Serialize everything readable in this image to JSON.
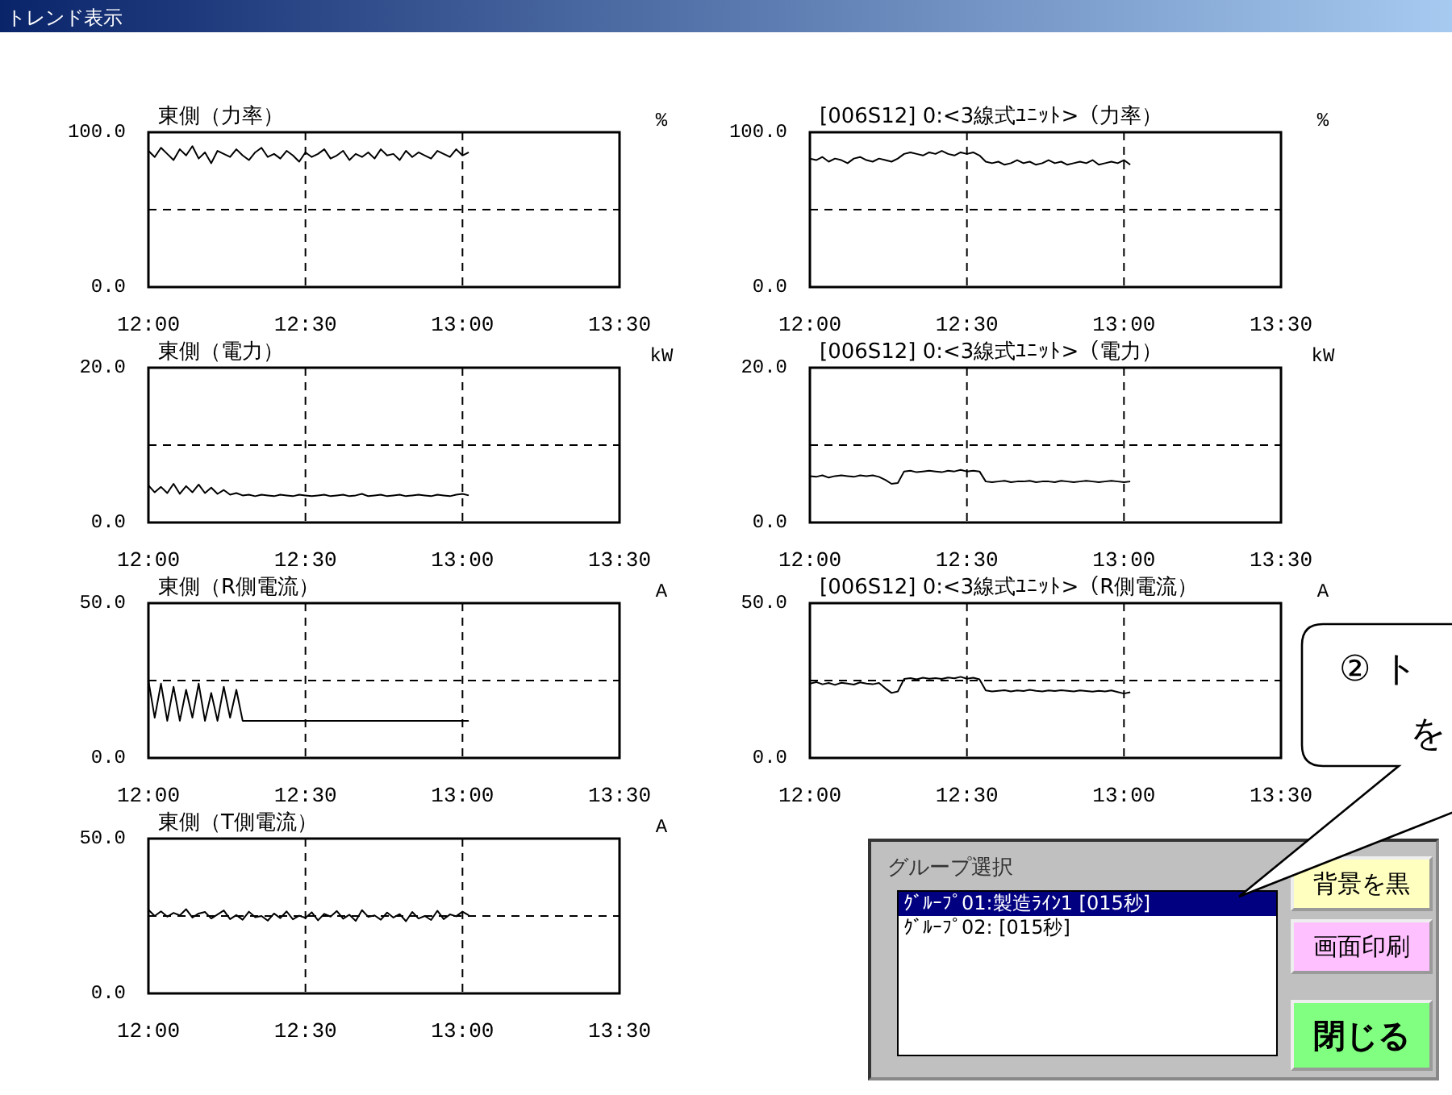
{
  "chart_data": [
    {
      "type": "line",
      "title": "東側（力率）",
      "ylabel": "%",
      "xlim": [
        12,
        13.5
      ],
      "ylim": [
        0,
        100
      ],
      "grid": true,
      "xticks": [
        {
          "value": 12,
          "label": "12:00"
        },
        {
          "value": 12.5,
          "label": "12:30"
        },
        {
          "value": 13,
          "label": "13:00"
        },
        {
          "value": 13.5,
          "label": "13:30"
        }
      ],
      "yticks": [
        {
          "value": 0,
          "label": "0.0"
        },
        {
          "value": 50,
          "label": null
        },
        {
          "value": 100,
          "label": "100.0"
        }
      ],
      "x": [
        12,
        12.02,
        12.04,
        12.06,
        12.08,
        12.1,
        12.12,
        12.14,
        12.16,
        12.18,
        12.2,
        12.22,
        12.24,
        12.26,
        12.28,
        12.3,
        12.32,
        12.34,
        12.36,
        12.38,
        12.4,
        12.42,
        12.44,
        12.46,
        12.48,
        12.5,
        12.52,
        12.54,
        12.56,
        12.58,
        12.6,
        12.62,
        12.64,
        12.66,
        12.68,
        12.7,
        12.72,
        12.74,
        12.76,
        12.78,
        12.8,
        12.82,
        12.84,
        12.86,
        12.88,
        12.9,
        12.92,
        12.94,
        12.96,
        12.98,
        13,
        13.02
      ],
      "series": [
        {
          "color": "#000000",
          "values": [
            88,
            84,
            90,
            86,
            82,
            89,
            85,
            91,
            83,
            87,
            80,
            88,
            86,
            84,
            89,
            85,
            82,
            87,
            90,
            84,
            86,
            83,
            88,
            85,
            81,
            87,
            84,
            86,
            89,
            83,
            85,
            88,
            82,
            86,
            84,
            87,
            83,
            89,
            85,
            86,
            82,
            88,
            84,
            87,
            85,
            83,
            88,
            86,
            84,
            89,
            85,
            87
          ]
        }
      ]
    },
    {
      "type": "line",
      "title": "[006S12] 0:<3線式ﾕﾆｯﾄ>（力率）",
      "ylabel": "%",
      "xlim": [
        12,
        13.5
      ],
      "ylim": [
        0,
        100
      ],
      "grid": true,
      "xticks": [
        {
          "value": 12,
          "label": "12:00"
        },
        {
          "value": 12.5,
          "label": "12:30"
        },
        {
          "value": 13,
          "label": "13:00"
        },
        {
          "value": 13.5,
          "label": "13:30"
        }
      ],
      "yticks": [
        {
          "value": 0,
          "label": "0.0"
        },
        {
          "value": 50,
          "label": null
        },
        {
          "value": 100,
          "label": "100.0"
        }
      ],
      "x": [
        12,
        12.02,
        12.04,
        12.06,
        12.08,
        12.1,
        12.12,
        12.14,
        12.16,
        12.18,
        12.2,
        12.22,
        12.24,
        12.26,
        12.28,
        12.3,
        12.32,
        12.34,
        12.36,
        12.38,
        12.4,
        12.42,
        12.44,
        12.46,
        12.48,
        12.5,
        12.52,
        12.54,
        12.56,
        12.58,
        12.6,
        12.62,
        12.64,
        12.66,
        12.68,
        12.7,
        12.72,
        12.74,
        12.76,
        12.78,
        12.8,
        12.82,
        12.84,
        12.86,
        12.88,
        12.9,
        12.92,
        12.94,
        12.96,
        12.98,
        13,
        13.02
      ],
      "series": [
        {
          "color": "#000000",
          "values": [
            83,
            82,
            84,
            81,
            83,
            82,
            80,
            83,
            84,
            82,
            81,
            83,
            82,
            81,
            83,
            86,
            87,
            86,
            85,
            87,
            86,
            88,
            86,
            85,
            87,
            86,
            87,
            85,
            81,
            80,
            81,
            79,
            80,
            82,
            80,
            81,
            79,
            80,
            82,
            80,
            81,
            79,
            80,
            81,
            80,
            82,
            79,
            80,
            81,
            80,
            82,
            79
          ]
        }
      ]
    },
    {
      "type": "line",
      "title": "東側（電力）",
      "ylabel": "kW",
      "xlim": [
        12,
        13.5
      ],
      "ylim": [
        0,
        20
      ],
      "grid": true,
      "xticks": [
        {
          "value": 12,
          "label": "12:00"
        },
        {
          "value": 12.5,
          "label": "12:30"
        },
        {
          "value": 13,
          "label": "13:00"
        },
        {
          "value": 13.5,
          "label": "13:30"
        }
      ],
      "yticks": [
        {
          "value": 0,
          "label": "0.0"
        },
        {
          "value": 10,
          "label": null
        },
        {
          "value": 20,
          "label": "20.0"
        }
      ],
      "x": [
        12,
        12.02,
        12.04,
        12.06,
        12.08,
        12.1,
        12.12,
        12.14,
        12.16,
        12.18,
        12.2,
        12.22,
        12.24,
        12.26,
        12.28,
        12.3,
        12.32,
        12.34,
        12.36,
        12.38,
        12.4,
        12.42,
        12.44,
        12.46,
        12.48,
        12.5,
        12.52,
        12.54,
        12.56,
        12.58,
        12.6,
        12.62,
        12.64,
        12.66,
        12.68,
        12.7,
        12.72,
        12.74,
        12.76,
        12.78,
        12.8,
        12.82,
        12.84,
        12.86,
        12.88,
        12.9,
        12.92,
        12.94,
        12.96,
        12.98,
        13,
        13.02
      ],
      "series": [
        {
          "color": "#000000",
          "values": [
            4.8,
            3.9,
            4.6,
            3.8,
            5.0,
            3.7,
            4.7,
            3.9,
            4.9,
            3.8,
            4.5,
            3.7,
            4.2,
            3.6,
            3.8,
            3.5,
            3.6,
            3.4,
            3.6,
            3.5,
            3.4,
            3.6,
            3.5,
            3.4,
            3.6,
            3.5,
            3.4,
            3.5,
            3.6,
            3.4,
            3.5,
            3.6,
            3.4,
            3.5,
            3.7,
            3.4,
            3.5,
            3.6,
            3.4,
            3.5,
            3.6,
            3.4,
            3.5,
            3.6,
            3.5,
            3.4,
            3.6,
            3.5,
            3.4,
            3.6,
            3.7,
            3.5
          ]
        }
      ]
    },
    {
      "type": "line",
      "title": "[006S12] 0:<3線式ﾕﾆｯﾄ>（電力）",
      "ylabel": "kW",
      "xlim": [
        12,
        13.5
      ],
      "ylim": [
        0,
        20
      ],
      "grid": true,
      "xticks": [
        {
          "value": 12,
          "label": "12:00"
        },
        {
          "value": 12.5,
          "label": "12:30"
        },
        {
          "value": 13,
          "label": "13:00"
        },
        {
          "value": 13.5,
          "label": "13:30"
        }
      ],
      "yticks": [
        {
          "value": 0,
          "label": "0.0"
        },
        {
          "value": 10,
          "label": null
        },
        {
          "value": 20,
          "label": "20.0"
        }
      ],
      "x": [
        12,
        12.02,
        12.04,
        12.06,
        12.08,
        12.1,
        12.12,
        12.14,
        12.16,
        12.18,
        12.2,
        12.22,
        12.24,
        12.26,
        12.28,
        12.3,
        12.32,
        12.34,
        12.36,
        12.38,
        12.4,
        12.42,
        12.44,
        12.46,
        12.48,
        12.5,
        12.52,
        12.54,
        12.56,
        12.58,
        12.6,
        12.62,
        12.64,
        12.66,
        12.68,
        12.7,
        12.72,
        12.74,
        12.76,
        12.78,
        12.8,
        12.82,
        12.84,
        12.86,
        12.88,
        12.9,
        12.92,
        12.94,
        12.96,
        12.98,
        13,
        13.02
      ],
      "series": [
        {
          "color": "#000000",
          "values": [
            6.0,
            5.9,
            6.1,
            5.8,
            6.0,
            6.1,
            6.0,
            5.9,
            6.1,
            6.0,
            6.1,
            5.9,
            5.5,
            5.0,
            5.1,
            6.6,
            6.7,
            6.5,
            6.6,
            6.7,
            6.6,
            6.5,
            6.7,
            6.6,
            6.8,
            6.6,
            6.7,
            6.6,
            5.3,
            5.2,
            5.3,
            5.4,
            5.2,
            5.3,
            5.3,
            5.4,
            5.2,
            5.3,
            5.3,
            5.2,
            5.4,
            5.3,
            5.2,
            5.3,
            5.4,
            5.3,
            5.2,
            5.3,
            5.4,
            5.3,
            5.2,
            5.3
          ]
        }
      ]
    },
    {
      "type": "line",
      "title": "東側（R側電流）",
      "ylabel": "A",
      "xlim": [
        12,
        13.5
      ],
      "ylim": [
        0,
        50
      ],
      "grid": true,
      "xticks": [
        {
          "value": 12,
          "label": "12:00"
        },
        {
          "value": 12.5,
          "label": "12:30"
        },
        {
          "value": 13,
          "label": "13:00"
        },
        {
          "value": 13.5,
          "label": "13:30"
        }
      ],
      "yticks": [
        {
          "value": 0,
          "label": "0.0"
        },
        {
          "value": 25,
          "label": null
        },
        {
          "value": 50,
          "label": "50.0"
        }
      ],
      "x": [
        12,
        12.02,
        12.04,
        12.06,
        12.08,
        12.1,
        12.12,
        12.14,
        12.16,
        12.18,
        12.2,
        12.22,
        12.24,
        12.26,
        12.28,
        12.3,
        12.32,
        12.34,
        12.36,
        12.38,
        12.4,
        12.42,
        12.44,
        12.46,
        12.48,
        12.5,
        12.52,
        12.54,
        12.56,
        12.58,
        12.6,
        12.62,
        12.64,
        12.66,
        12.68,
        12.7,
        12.72,
        12.74,
        12.76,
        12.78,
        12.8,
        12.82,
        12.84,
        12.86,
        12.88,
        12.9,
        12.92,
        12.94,
        12.96,
        12.98,
        13,
        13.02
      ],
      "series": [
        {
          "color": "#000000",
          "values": [
            25,
            13,
            24,
            12,
            23,
            12,
            22,
            13,
            24,
            12,
            21,
            12,
            23,
            13,
            22,
            12,
            12,
            12,
            12,
            12,
            12,
            12,
            12,
            12,
            12,
            12,
            12,
            12,
            12,
            12,
            12,
            12,
            12,
            12,
            12,
            12,
            12,
            12,
            12,
            12,
            12,
            12,
            12,
            12,
            12,
            12,
            12,
            12,
            12,
            12,
            12,
            12
          ]
        }
      ]
    },
    {
      "type": "line",
      "title": "[006S12] 0:<3線式ﾕﾆｯﾄ>（R側電流）",
      "ylabel": "A",
      "xlim": [
        12,
        13.5
      ],
      "ylim": [
        0,
        50
      ],
      "grid": true,
      "xticks": [
        {
          "value": 12,
          "label": "12:00"
        },
        {
          "value": 12.5,
          "label": "12:30"
        },
        {
          "value": 13,
          "label": "13:00"
        },
        {
          "value": 13.5,
          "label": "13:30"
        }
      ],
      "yticks": [
        {
          "value": 0,
          "label": "0.0"
        },
        {
          "value": 25,
          "label": null
        },
        {
          "value": 50,
          "label": "50.0"
        }
      ],
      "x": [
        12,
        12.02,
        12.04,
        12.06,
        12.08,
        12.1,
        12.12,
        12.14,
        12.16,
        12.18,
        12.2,
        12.22,
        12.24,
        12.26,
        12.28,
        12.3,
        12.32,
        12.34,
        12.36,
        12.38,
        12.4,
        12.42,
        12.44,
        12.46,
        12.48,
        12.5,
        12.52,
        12.54,
        12.56,
        12.58,
        12.6,
        12.62,
        12.64,
        12.66,
        12.68,
        12.7,
        12.72,
        12.74,
        12.76,
        12.78,
        12.8,
        12.82,
        12.84,
        12.86,
        12.88,
        12.9,
        12.92,
        12.94,
        12.96,
        12.98,
        13,
        13.02
      ],
      "series": [
        {
          "color": "#000000",
          "values": [
            24,
            24.5,
            23.8,
            24.2,
            23.6,
            24.3,
            24,
            23.7,
            24.4,
            24,
            23.8,
            24.2,
            22.5,
            21,
            21.5,
            25.5,
            25.8,
            25.4,
            25.9,
            25.6,
            25.8,
            25.5,
            26,
            25.7,
            26.2,
            25.6,
            25.9,
            25.4,
            21.8,
            21.5,
            21.7,
            21.9,
            21.5,
            21.8,
            21.6,
            22,
            21.7,
            21.5,
            21.8,
            21.6,
            21.9,
            21.7,
            21.5,
            21.8,
            21.6,
            21.4,
            21.7,
            21.5,
            21.8,
            21.3,
            20.8,
            21.2
          ]
        }
      ]
    },
    {
      "type": "line",
      "title": "東側（T側電流）",
      "ylabel": "A",
      "xlim": [
        12,
        13.5
      ],
      "ylim": [
        0,
        50
      ],
      "grid": true,
      "xticks": [
        {
          "value": 12,
          "label": "12:00"
        },
        {
          "value": 12.5,
          "label": "12:30"
        },
        {
          "value": 13,
          "label": "13:00"
        },
        {
          "value": 13.5,
          "label": "13:30"
        }
      ],
      "yticks": [
        {
          "value": 0,
          "label": "0.0"
        },
        {
          "value": 25,
          "label": null
        },
        {
          "value": 50,
          "label": "50.0"
        }
      ],
      "x": [
        12,
        12.02,
        12.04,
        12.06,
        12.08,
        12.1,
        12.12,
        12.14,
        12.16,
        12.18,
        12.2,
        12.22,
        12.24,
        12.26,
        12.28,
        12.3,
        12.32,
        12.34,
        12.36,
        12.38,
        12.4,
        12.42,
        12.44,
        12.46,
        12.48,
        12.5,
        12.52,
        12.54,
        12.56,
        12.58,
        12.6,
        12.62,
        12.64,
        12.66,
        12.68,
        12.7,
        12.72,
        12.74,
        12.76,
        12.78,
        12.8,
        12.82,
        12.84,
        12.86,
        12.88,
        12.9,
        12.92,
        12.94,
        12.96,
        12.98,
        13,
        13.02
      ],
      "series": [
        {
          "color": "#000000",
          "values": [
            27,
            25,
            26.5,
            24.8,
            26,
            25.2,
            27.2,
            24.5,
            25.8,
            26.3,
            24.2,
            25.5,
            26.8,
            24,
            25.3,
            23.8,
            26.4,
            24.6,
            25,
            23.5,
            25.8,
            24.3,
            26.5,
            23.9,
            25.1,
            24.4,
            26.2,
            23.6,
            25.7,
            24.8,
            26.6,
            24.1,
            25.4,
            23.4,
            26.9,
            24.7,
            25.2,
            23.8,
            26.1,
            24.5,
            25.6,
            23.3,
            26.3,
            24.2,
            25,
            23.7,
            26.7,
            24,
            25.5,
            24.9,
            26.4,
            25.2
          ]
        }
      ]
    },
    {
      "type": "other",
      "title": "トレンド表示",
      "annotations": [
        "グループ選択",
        "ｸﾞﾙｰﾌﾟ01:製造ﾗｲﾝ1 [015秒]",
        "ｸﾞﾙｰﾌﾟ02: [015秒]",
        "背景を黒",
        "画面印刷",
        "閉じる",
        "② ト",
        "を"
      ]
    }
  ]
}
